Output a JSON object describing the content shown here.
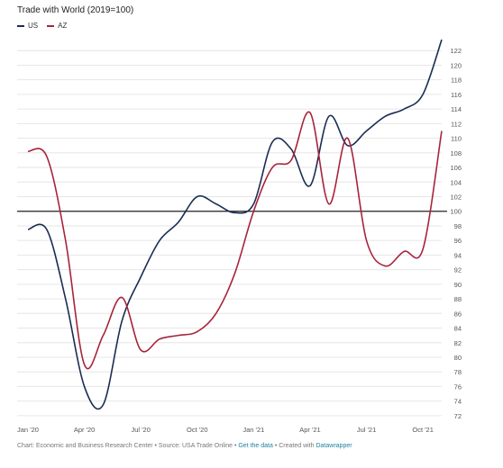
{
  "chart_data": {
    "type": "line",
    "title": "Trade with World (2019=100)",
    "xlabel": "",
    "ylabel": "",
    "x": [
      "2020-01",
      "2020-02",
      "2020-03",
      "2020-04",
      "2020-05",
      "2020-06",
      "2020-07",
      "2020-08",
      "2020-09",
      "2020-10",
      "2020-11",
      "2020-12",
      "2021-01",
      "2021-02",
      "2021-03",
      "2021-04",
      "2021-05",
      "2021-06",
      "2021-07",
      "2021-08",
      "2021-09",
      "2021-10",
      "2021-11"
    ],
    "x_ticks": [
      "Jan '20",
      "Apr '20",
      "Jul '20",
      "Oct '20",
      "Jan '21",
      "Apr '21",
      "Jul '21",
      "Oct '21"
    ],
    "x_tick_index": [
      0,
      3,
      6,
      9,
      12,
      15,
      18,
      21
    ],
    "y_ticks": [
      72,
      74,
      76,
      78,
      80,
      82,
      84,
      86,
      88,
      90,
      92,
      94,
      96,
      98,
      100,
      102,
      104,
      106,
      108,
      110,
      112,
      114,
      116,
      118,
      120,
      122
    ],
    "ylim": [
      71,
      124
    ],
    "reference_line": 100,
    "series": [
      {
        "name": "US",
        "color": "#1b2d53",
        "values": [
          97.5,
          97.5,
          88,
          76,
          73.5,
          85,
          91,
          96,
          98.5,
          102,
          101,
          99.8,
          101,
          109.5,
          108.5,
          103.5,
          113,
          109,
          111,
          113,
          114,
          116,
          123.5
        ]
      },
      {
        "name": "AZ",
        "color": "#a7243b",
        "values": [
          108.2,
          107.5,
          96,
          79,
          83,
          88.2,
          81,
          82.5,
          83,
          83.5,
          86,
          91.5,
          100,
          106,
          107,
          113.5,
          101,
          110,
          96,
          92.5,
          94.5,
          94.8,
          111
        ]
      }
    ],
    "grid": true,
    "legend_position": "top-left"
  },
  "footer": {
    "prefix": "Chart: Economic and Business Research Center • Source: USA Trade Online • ",
    "get_data": "Get the data",
    "middle": " • Created with ",
    "tool": "Datawrapper"
  }
}
